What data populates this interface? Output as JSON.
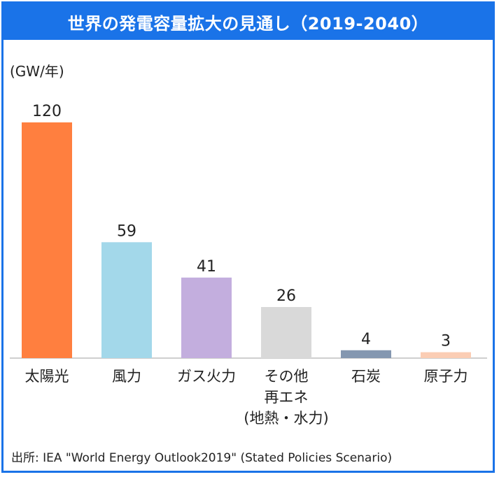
{
  "title": "世界の発電容量拡大の見通し（2019-2040）",
  "unit_label": "(GW/年)",
  "source": "出所: IEA \"World Energy Outlook2019\" (Stated Policies Scenario)",
  "chart_data": {
    "type": "bar",
    "categories": [
      [
        "太陽光"
      ],
      [
        "風力"
      ],
      [
        "ガス火力"
      ],
      [
        "その他",
        "再エネ",
        "(地熱・水力)"
      ],
      [
        "石炭"
      ],
      [
        "原子力"
      ]
    ],
    "values": [
      120,
      59,
      41,
      26,
      4,
      3
    ],
    "colors": [
      "#ff7f3f",
      "#a3d8ea",
      "#c3aede",
      "#d9d9d9",
      "#8497b0",
      "#fbcdb4"
    ],
    "ylabel": "(GW/年)",
    "ylim": [
      0,
      120
    ],
    "grid": false,
    "legend": "none"
  }
}
